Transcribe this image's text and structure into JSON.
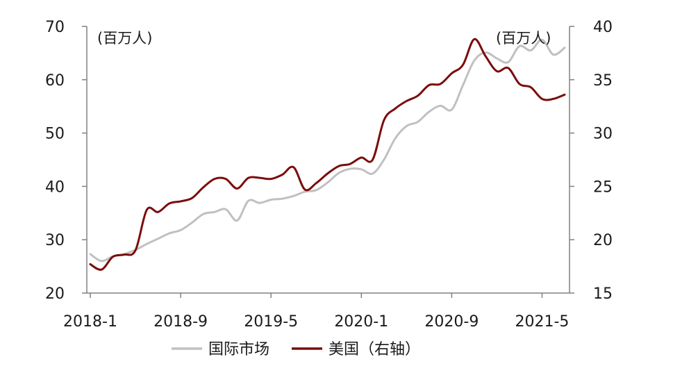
{
  "chart_data": {
    "type": "line",
    "unit_left": "(百万人)",
    "unit_right": "(百万人)",
    "x_tick_labels": [
      "2018-1",
      "2018-9",
      "2019-5",
      "2020-1",
      "2020-9",
      "2021-5"
    ],
    "x_tick_months": [
      0,
      8,
      16,
      24,
      32,
      40
    ],
    "y_left": {
      "min": 20,
      "max": 70,
      "ticks": [
        20,
        30,
        40,
        50,
        60,
        70
      ]
    },
    "y_right": {
      "min": 15,
      "max": 40,
      "ticks": [
        15,
        20,
        25,
        30,
        35,
        40
      ]
    },
    "legend_position": "bottom",
    "series": [
      {
        "name": "国际市场",
        "axis": "left",
        "color": "#c0c0c0",
        "x": [
          0,
          1,
          2,
          3,
          4,
          5,
          6,
          7,
          8,
          9,
          10,
          11,
          12,
          13,
          14,
          15,
          16,
          17,
          18,
          19,
          20,
          21,
          22,
          23,
          24,
          25,
          26,
          27,
          28,
          29,
          30,
          31,
          32,
          33,
          34,
          35,
          36,
          37,
          38,
          39,
          40,
          41,
          42
        ],
        "values": [
          27.3,
          26.0,
          26.9,
          27.3,
          28.1,
          29.2,
          30.2,
          31.2,
          31.8,
          33.2,
          34.8,
          35.2,
          35.7,
          33.6,
          37.3,
          36.9,
          37.5,
          37.7,
          38.2,
          39.0,
          39.3,
          40.7,
          42.5,
          43.3,
          43.2,
          42.4,
          45.0,
          49.0,
          51.3,
          52.1,
          54.0,
          55.1,
          54.4,
          59.0,
          63.6,
          65.1,
          64.0,
          63.3,
          66.3,
          65.5,
          67.5,
          64.7,
          66.0
        ]
      },
      {
        "name": "美国（右轴）",
        "axis": "right",
        "color": "#7b0c0c",
        "x": [
          0,
          1,
          2,
          3,
          4,
          5,
          6,
          7,
          8,
          9,
          10,
          11,
          12,
          13,
          14,
          15,
          16,
          17,
          18,
          19,
          20,
          21,
          22,
          23,
          24,
          25,
          26,
          27,
          28,
          29,
          30,
          31,
          32,
          33,
          34,
          35,
          36,
          37,
          38,
          39,
          40,
          41,
          42
        ],
        "values": [
          17.7,
          17.2,
          18.4,
          18.6,
          19.0,
          22.8,
          22.6,
          23.4,
          23.6,
          23.9,
          24.9,
          25.7,
          25.7,
          24.8,
          25.8,
          25.8,
          25.7,
          26.1,
          26.8,
          24.7,
          25.3,
          26.2,
          26.9,
          27.1,
          27.7,
          27.5,
          31.2,
          32.3,
          33.0,
          33.5,
          34.5,
          34.6,
          35.6,
          36.4,
          38.8,
          37.2,
          35.8,
          36.1,
          34.6,
          34.3,
          33.2,
          33.2,
          33.6
        ]
      }
    ]
  }
}
